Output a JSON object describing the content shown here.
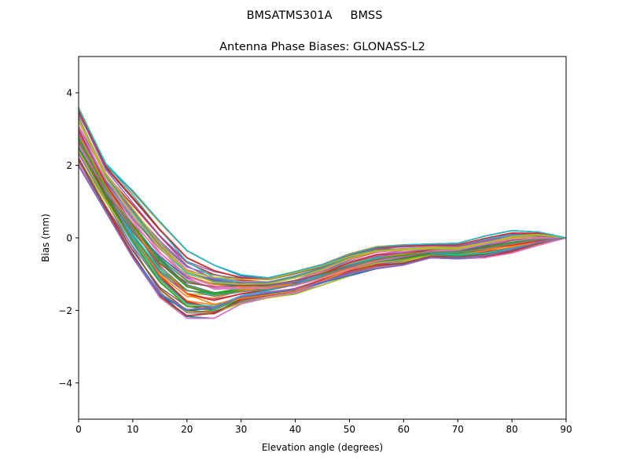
{
  "chart_data": {
    "type": "line",
    "suptitle": "BMSATMS301A     BMSS",
    "title": "Antenna Phase Biases: GLONASS-L2",
    "xlabel": "Elevation angle (degrees)",
    "ylabel": "Bias (mm)",
    "xlim": [
      0,
      90
    ],
    "ylim": [
      -5,
      5
    ],
    "xticks": [
      0,
      10,
      20,
      30,
      40,
      50,
      60,
      70,
      80,
      90
    ],
    "yticks": [
      -4,
      -2,
      0,
      2,
      4
    ],
    "tick_labels_x": [
      "0",
      "10",
      "20",
      "30",
      "40",
      "50",
      "60",
      "70",
      "80",
      "90"
    ],
    "tick_labels_y": [
      "−4",
      "−2",
      "0",
      "2",
      "4"
    ],
    "x": [
      0,
      5,
      10,
      15,
      20,
      25,
      30,
      35,
      40,
      45,
      50,
      55,
      60,
      65,
      70,
      75,
      80,
      85,
      90
    ],
    "legend": "none",
    "grid": false,
    "series_count": 60,
    "envelope": {
      "upper": [
        3.65,
        2.1,
        1.3,
        0.45,
        -0.35,
        -0.75,
        -1.02,
        -1.1,
        -0.92,
        -0.72,
        -0.42,
        -0.22,
        -0.17,
        -0.16,
        -0.15,
        0.05,
        0.2,
        0.16,
        0.0
      ],
      "lower": [
        1.98,
        0.72,
        -0.55,
        -1.65,
        -2.22,
        -2.22,
        -1.82,
        -1.65,
        -1.55,
        -1.3,
        -1.05,
        -0.85,
        -0.75,
        -0.55,
        -0.58,
        -0.55,
        -0.42,
        -0.2,
        0.0
      ]
    },
    "series_colors": [
      "#1f77b4",
      "#ff7f0e",
      "#2ca02c",
      "#d62728",
      "#9467bd",
      "#8c564b",
      "#e377c2",
      "#7f7f7f",
      "#bcbd22",
      "#17becf"
    ]
  }
}
